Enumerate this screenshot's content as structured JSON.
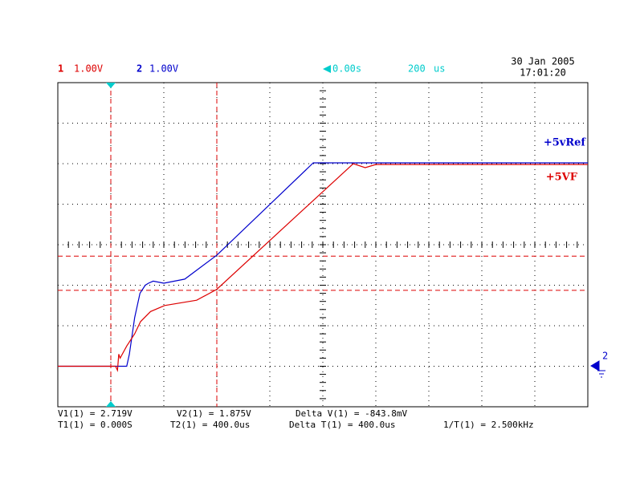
{
  "header": {
    "ch1_label": "1",
    "ch1_scale": "1.00V",
    "ch2_label": "2",
    "ch2_scale": "1.00V",
    "delay": "0.00s",
    "timebase": "200",
    "timebase_unit": "us",
    "date": "30 Jan 2005",
    "time": "17:01:20"
  },
  "chart_data": {
    "type": "line",
    "xlim": [
      -200,
      1800
    ],
    "ylim": [
      -1,
      7
    ],
    "series": [
      {
        "name": "+5vRef",
        "color": "#0000cc",
        "x": [
          -200,
          60,
          70,
          90,
          110,
          130,
          142,
          160,
          200,
          279,
          400,
          764,
          1800
        ],
        "values": [
          0,
          0,
          0.3,
          1.2,
          1.8,
          2.0,
          2.05,
          2.1,
          2.05,
          2.15,
          2.74,
          5.02,
          5.02
        ]
      },
      {
        "name": "+5VF",
        "color": "#dd0000",
        "x": [
          -200,
          18,
          25,
          30,
          35,
          60,
          90,
          112,
          150,
          203,
          324,
          400,
          915,
          960,
          1000,
          1800
        ],
        "values": [
          0,
          0,
          -0.1,
          0.3,
          0.2,
          0.5,
          0.8,
          1.1,
          1.35,
          1.5,
          1.63,
          1.9,
          5.0,
          4.9,
          4.98,
          4.98
        ]
      }
    ],
    "cursors": {
      "v": [
        2.719,
        1.875
      ],
      "t": [
        0,
        400
      ],
      "color": "#dd0000"
    }
  },
  "measurements": [
    [
      "V1(1) = 2.719V",
      "V2(1) = 1.875V",
      "Delta V(1) = -843.8mV"
    ],
    [
      "T1(1) = 0.000S",
      "T2(1) = 400.0us",
      "Delta T(1) = 400.0us",
      "1/T(1) = 2.500kHz"
    ]
  ]
}
